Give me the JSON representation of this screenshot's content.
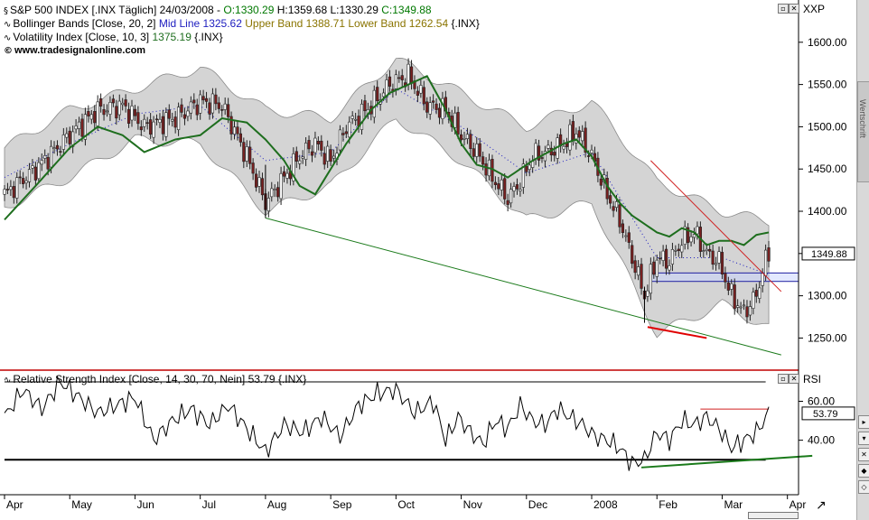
{
  "header": {
    "title_line": "S&P 500 INDEX [.INX  Täglich] 24/03/2008 - ",
    "open": "O:1330.29",
    "high": "H:1359.68",
    "low": "L:1330.29",
    "close": "C:1349.88",
    "bollinger_label": "Bollinger Bands [Close, 20, 2]",
    "bollinger_mid": "Mid Line 1325.62",
    "bollinger_upper": "Upper Band 1388.71",
    "bollinger_lower": "Lower Band 1262.54",
    "bollinger_sym": "{.INX}",
    "volatility": "Volatility Index [Close, 10, 3]",
    "volatility_val": "1375.19",
    "volatility_sym": "{.INX}",
    "copyright": "www.tradesignalonline.com"
  },
  "rsi_header": {
    "label": "Relative Strength Index [Close, 14, 30, 70, Nein]",
    "value": "53.79",
    "sym": "{.INX}"
  },
  "axis": {
    "price_title": "XXP",
    "rsi_title": "RSI",
    "price_ticks": [
      "1600.00",
      "1550.00",
      "1500.00",
      "1450.00",
      "1400.00",
      "1350.00",
      "1300.00",
      "1250.00"
    ],
    "price_tick_values": [
      1600,
      1550,
      1500,
      1450,
      1400,
      1350,
      1300,
      1250
    ],
    "last_price": "1349.88",
    "rsi_ticks": [
      "60.00",
      "40.00"
    ],
    "rsi_tick_values": [
      60,
      40
    ],
    "rsi_last": "53.79",
    "months": [
      "Apr",
      "May",
      "Jun",
      "Jul",
      "Aug",
      "Sep",
      "Oct",
      "Nov",
      "Dec",
      "2008",
      "Feb",
      "Mar",
      "Apr"
    ],
    "month_index": [
      0,
      21,
      42,
      63,
      84,
      105,
      126,
      147,
      168,
      189,
      210,
      231,
      252
    ],
    "side_text": "Wertschrift"
  },
  "chart_data": {
    "type": "candlestick",
    "ylim": [
      1212,
      1650
    ],
    "rsi_ylim": [
      12,
      76
    ],
    "rsi_levels": [
      70,
      30
    ],
    "close_keys": [
      [
        0,
        1420
      ],
      [
        10,
        1450
      ],
      [
        21,
        1490
      ],
      [
        30,
        1520
      ],
      [
        38,
        1525
      ],
      [
        45,
        1500
      ],
      [
        55,
        1510
      ],
      [
        63,
        1530
      ],
      [
        70,
        1525
      ],
      [
        78,
        1465
      ],
      [
        84,
        1410
      ],
      [
        90,
        1440
      ],
      [
        95,
        1465
      ],
      [
        100,
        1480
      ],
      [
        105,
        1460
      ],
      [
        110,
        1500
      ],
      [
        118,
        1525
      ],
      [
        124,
        1550
      ],
      [
        130,
        1560
      ],
      [
        136,
        1525
      ],
      [
        142,
        1520
      ],
      [
        147,
        1490
      ],
      [
        152,
        1470
      ],
      [
        157,
        1440
      ],
      [
        162,
        1415
      ],
      [
        166,
        1435
      ],
      [
        170,
        1465
      ],
      [
        175,
        1470
      ],
      [
        180,
        1480
      ],
      [
        184,
        1495
      ],
      [
        189,
        1465
      ],
      [
        194,
        1420
      ],
      [
        198,
        1390
      ],
      [
        202,
        1345
      ],
      [
        206,
        1300
      ],
      [
        210,
        1345
      ],
      [
        214,
        1340
      ],
      [
        218,
        1365
      ],
      [
        222,
        1375
      ],
      [
        226,
        1350
      ],
      [
        230,
        1340
      ],
      [
        234,
        1300
      ],
      [
        238,
        1280
      ],
      [
        242,
        1300
      ],
      [
        244,
        1330
      ],
      [
        246,
        1350
      ]
    ],
    "rsi_keys": [
      [
        0,
        52
      ],
      [
        6,
        66
      ],
      [
        12,
        56
      ],
      [
        18,
        70
      ],
      [
        24,
        62
      ],
      [
        30,
        54
      ],
      [
        36,
        58
      ],
      [
        42,
        62
      ],
      [
        48,
        40
      ],
      [
        54,
        50
      ],
      [
        60,
        56
      ],
      [
        66,
        48
      ],
      [
        72,
        58
      ],
      [
        78,
        46
      ],
      [
        84,
        34
      ],
      [
        90,
        48
      ],
      [
        96,
        44
      ],
      [
        102,
        52
      ],
      [
        108,
        42
      ],
      [
        114,
        58
      ],
      [
        120,
        64
      ],
      [
        126,
        66
      ],
      [
        132,
        54
      ],
      [
        138,
        60
      ],
      [
        142,
        40
      ],
      [
        146,
        52
      ],
      [
        150,
        44
      ],
      [
        154,
        38
      ],
      [
        158,
        50
      ],
      [
        162,
        46
      ],
      [
        166,
        58
      ],
      [
        170,
        50
      ],
      [
        174,
        48
      ],
      [
        178,
        56
      ],
      [
        182,
        52
      ],
      [
        186,
        48
      ],
      [
        190,
        42
      ],
      [
        194,
        40
      ],
      [
        198,
        36
      ],
      [
        202,
        28
      ],
      [
        206,
        30
      ],
      [
        210,
        44
      ],
      [
        214,
        40
      ],
      [
        218,
        50
      ],
      [
        222,
        48
      ],
      [
        226,
        52
      ],
      [
        230,
        46
      ],
      [
        234,
        36
      ],
      [
        238,
        40
      ],
      [
        242,
        44
      ],
      [
        246,
        54
      ]
    ],
    "bb_center_keys": [
      [
        0,
        1440
      ],
      [
        21,
        1480
      ],
      [
        42,
        1515
      ],
      [
        63,
        1525
      ],
      [
        84,
        1460
      ],
      [
        105,
        1470
      ],
      [
        126,
        1545
      ],
      [
        147,
        1500
      ],
      [
        168,
        1445
      ],
      [
        189,
        1470
      ],
      [
        210,
        1345
      ],
      [
        231,
        1345
      ],
      [
        246,
        1325
      ]
    ],
    "bb_halfwidth_keys": [
      [
        0,
        35
      ],
      [
        21,
        40
      ],
      [
        42,
        30
      ],
      [
        63,
        45
      ],
      [
        84,
        60
      ],
      [
        105,
        40
      ],
      [
        126,
        35
      ],
      [
        147,
        40
      ],
      [
        168,
        55
      ],
      [
        189,
        60
      ],
      [
        210,
        90
      ],
      [
        231,
        55
      ],
      [
        246,
        63
      ]
    ],
    "volatility_keys": [
      [
        0,
        1390
      ],
      [
        10,
        1430
      ],
      [
        21,
        1475
      ],
      [
        30,
        1500
      ],
      [
        38,
        1490
      ],
      [
        45,
        1470
      ],
      [
        55,
        1485
      ],
      [
        63,
        1490
      ],
      [
        70,
        1510
      ],
      [
        78,
        1505
      ],
      [
        84,
        1485
      ],
      [
        90,
        1460
      ],
      [
        95,
        1430
      ],
      [
        100,
        1420
      ],
      [
        105,
        1450
      ],
      [
        110,
        1480
      ],
      [
        118,
        1520
      ],
      [
        124,
        1540
      ],
      [
        130,
        1550
      ],
      [
        136,
        1560
      ],
      [
        142,
        1520
      ],
      [
        147,
        1480
      ],
      [
        152,
        1455
      ],
      [
        157,
        1450
      ],
      [
        162,
        1440
      ],
      [
        166,
        1450
      ],
      [
        170,
        1460
      ],
      [
        175,
        1470
      ],
      [
        180,
        1480
      ],
      [
        184,
        1485
      ],
      [
        189,
        1465
      ],
      [
        194,
        1430
      ],
      [
        198,
        1410
      ],
      [
        202,
        1395
      ],
      [
        206,
        1385
      ],
      [
        210,
        1375
      ],
      [
        214,
        1370
      ],
      [
        218,
        1380
      ],
      [
        222,
        1375
      ],
      [
        226,
        1360
      ],
      [
        230,
        1365
      ],
      [
        234,
        1365
      ],
      [
        238,
        1360
      ],
      [
        242,
        1372
      ],
      [
        246,
        1375
      ]
    ],
    "trendlines": [
      {
        "name": "support-green",
        "color": "#1a7a1a",
        "x1": 84,
        "y1": 1392,
        "x2": 250,
        "y2": 1230
      },
      {
        "name": "resistance-red",
        "color": "#d02020",
        "x1": 208,
        "y1": 1460,
        "x2": 250,
        "y2": 1305
      },
      {
        "name": "low-red",
        "color": "#e00000",
        "x1": 207,
        "y1": 1263,
        "x2": 226,
        "y2": 1250
      },
      {
        "name": "aug-drop",
        "color": "#000000",
        "x1": 84,
        "y1": 1392,
        "x2": 84,
        "y2": 1392
      }
    ],
    "zone": {
      "y_from": 1317,
      "y_to": 1327,
      "x_from": 208
    },
    "rsi_lines": [
      {
        "name": "rsi-70-line",
        "value": 70,
        "color": "#000000"
      },
      {
        "name": "rsi-30-line",
        "value": 30,
        "color": "#000000"
      },
      {
        "name": "rsi-resistance",
        "value": 56,
        "color": "#d02020",
        "x1": 224,
        "x2": 246
      },
      {
        "name": "rsi-support",
        "color": "#1a7a1a",
        "x1": 205,
        "y1": 26,
        "x2": 260,
        "y2": 32
      }
    ]
  },
  "colors": {
    "bg": "#ffffff",
    "band": "#d4d4d4",
    "band_edge": "#8a8a8a",
    "vol": "#1e6e1e",
    "mid": "#2020c0",
    "up": "#ffffff",
    "down": "#7a2020"
  }
}
